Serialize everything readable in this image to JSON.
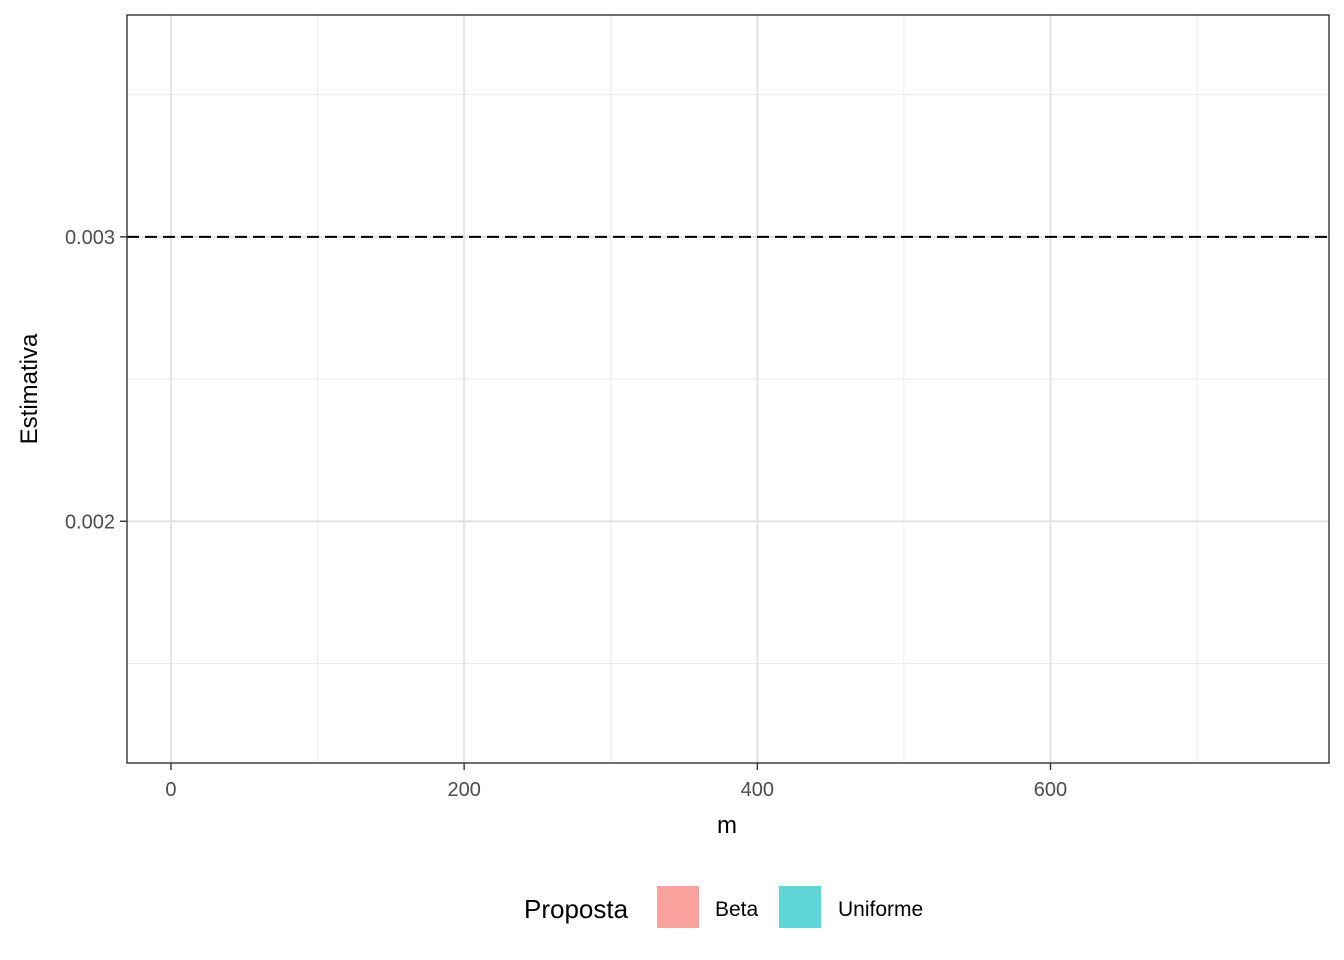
{
  "chart_data": {
    "type": "line",
    "xlabel": "m",
    "ylabel": "Estimativa",
    "xlim": [
      -30,
      790
    ],
    "ylim": [
      0.00115,
      0.00378
    ],
    "x_breaks": [
      0,
      200,
      400,
      600
    ],
    "x_tick_labels": [
      "0",
      "200",
      "400",
      "600"
    ],
    "x_minor_breaks": [
      100,
      300,
      500,
      700
    ],
    "y_breaks": [
      0.002,
      0.003
    ],
    "y_tick_labels": [
      "0.002",
      "0.003"
    ],
    "y_minor_breaks": [
      0.0015,
      0.0025,
      0.0035
    ],
    "grid": true,
    "reference_line": {
      "y": 0.003,
      "style": "dashed"
    },
    "series": [
      {
        "name": "Beta",
        "values": []
      },
      {
        "name": "Uniforme",
        "values": []
      }
    ],
    "legend": {
      "title": "Proposta",
      "position": "bottom",
      "items": [
        {
          "label": "Beta",
          "color": "#F8A29B"
        },
        {
          "label": "Uniforme",
          "color": "#5ED6D8"
        }
      ]
    }
  }
}
